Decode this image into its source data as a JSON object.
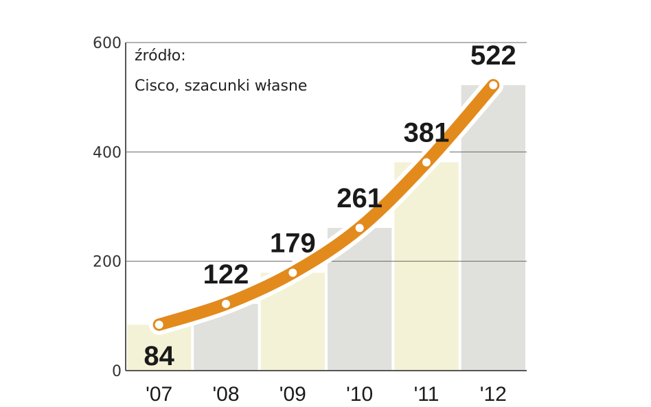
{
  "chart_data": {
    "type": "line",
    "categories": [
      "'07",
      "'08",
      "'09",
      "'10",
      "'11",
      "'12"
    ],
    "values": [
      84,
      122,
      179,
      261,
      381,
      522
    ],
    "ylim": [
      0,
      600
    ],
    "yticks": [
      "0",
      "200",
      "400",
      "600"
    ],
    "source_label": "źródło:",
    "source_text": "Cisco, szacunki własne",
    "grid": true
  },
  "colors": {
    "line": "#e28a1c",
    "line_halo": "#ffffff",
    "bar_grey": "#e0e0dc",
    "bar_yellow": "#f3f2d6",
    "grid": "#666666"
  }
}
